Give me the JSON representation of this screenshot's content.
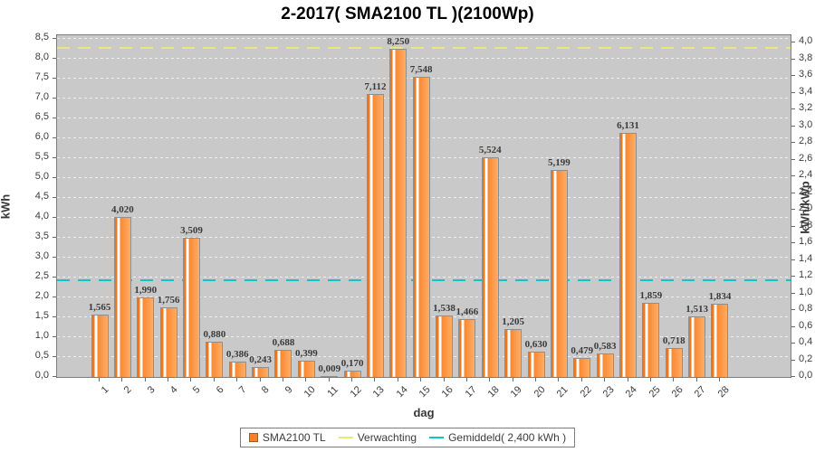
{
  "chart_data": {
    "type": "bar",
    "title": "2-2017( SMA2100 TL )(2100Wp)",
    "xlabel": "dag",
    "ylabel_left": "kWh",
    "ylabel_right": "kWh/kWp",
    "left_axis": {
      "min": 0.0,
      "max": 8.5,
      "step": 0.5,
      "display_max": 8.59
    },
    "right_axis": {
      "min": 0.0,
      "max": 4.0,
      "step": 0.2,
      "kwh_per_unit": 2.1
    },
    "grid": true,
    "decimal_separator": ",",
    "categories": [
      1,
      2,
      3,
      4,
      5,
      6,
      7,
      8,
      9,
      10,
      11,
      12,
      13,
      14,
      15,
      16,
      17,
      18,
      19,
      20,
      21,
      22,
      23,
      24,
      25,
      26,
      27,
      28
    ],
    "series": [
      {
        "name": "SMA2100 TL",
        "values": [
          1.565,
          4.02,
          1.99,
          1.756,
          3.509,
          0.88,
          0.386,
          0.243,
          0.688,
          0.399,
          0.009,
          0.17,
          7.112,
          8.25,
          7.548,
          1.538,
          1.466,
          5.524,
          1.205,
          0.63,
          5.199,
          0.479,
          0.583,
          6.131,
          1.859,
          0.718,
          1.513,
          1.834
        ]
      }
    ],
    "reference_lines": [
      {
        "name": "Verwachting",
        "value_kwh": 8.24,
        "color": "#e9e97a"
      },
      {
        "name": "Gemiddeld",
        "value_kwh": 2.4,
        "color": "#0cc6c6"
      }
    ],
    "legend": {
      "position": "bottom",
      "items": [
        {
          "label": "SMA2100 TL",
          "swatch": "bar",
          "color": "#f5812c"
        },
        {
          "label": "Verwachting",
          "swatch": "line",
          "color": "#e9e97a"
        },
        {
          "label": "Gemiddeld( 2,400 kWh )",
          "swatch": "line",
          "color": "#0cc6c6"
        }
      ]
    }
  },
  "colors": {
    "background": "#ffffff",
    "plot_background": "#c9c9c9",
    "gridline": "#efefef",
    "bar_dark": "#f0761c",
    "bar_main": "#f9872f",
    "bar_light": "#ffad66",
    "bar_stripe": "#ffffff",
    "bar_border": "#8f8f8f",
    "text": "#3c3c3c"
  }
}
